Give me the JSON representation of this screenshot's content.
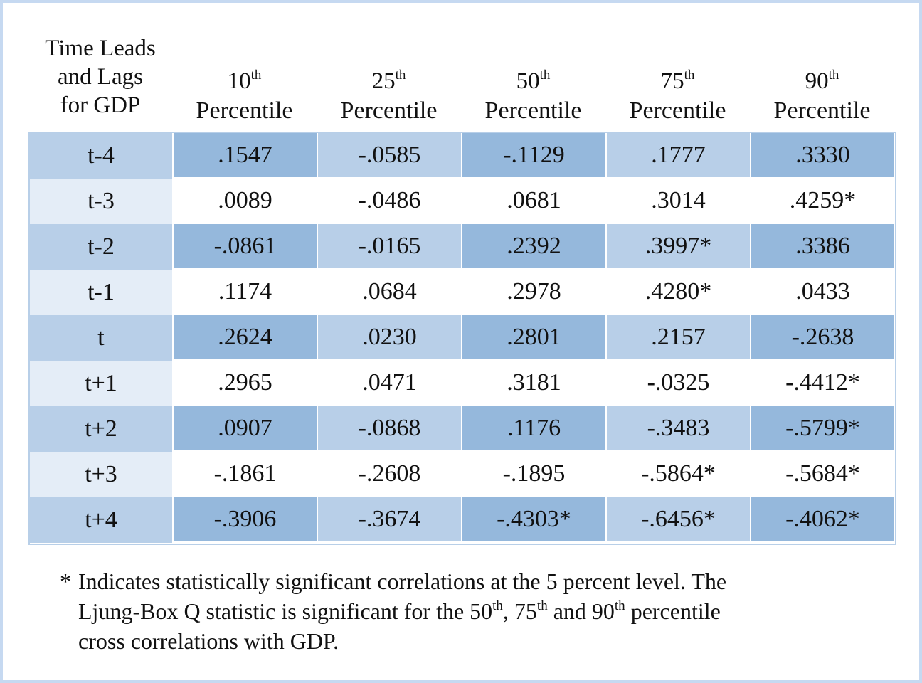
{
  "header": {
    "row_label": [
      "Time Leads",
      "and Lags",
      "for GDP"
    ],
    "columns": [
      {
        "number": "10",
        "sup": "th",
        "label": "Percentile"
      },
      {
        "number": "25",
        "sup": "th",
        "label": "Percentile"
      },
      {
        "number": "50",
        "sup": "th",
        "label": "Percentile"
      },
      {
        "number": "75",
        "sup": "th",
        "label": "Percentile"
      },
      {
        "number": "90",
        "sup": "th",
        "label": "Percentile"
      }
    ]
  },
  "table": {
    "rows": [
      {
        "label": "t-4",
        "cells": [
          ".1547",
          "-.0585",
          "-.1129",
          ".1777",
          ".3330"
        ]
      },
      {
        "label": "t-3",
        "cells": [
          ".0089",
          "-.0486",
          ".0681",
          ".3014",
          ".4259*"
        ]
      },
      {
        "label": "t-2",
        "cells": [
          "-.0861",
          "-.0165",
          ".2392",
          ".3997*",
          ".3386"
        ]
      },
      {
        "label": "t-1",
        "cells": [
          ".1174",
          ".0684",
          ".2978",
          ".4280*",
          ".0433"
        ]
      },
      {
        "label": "t",
        "cells": [
          ".2624",
          ".0230",
          ".2801",
          ".2157",
          "-.2638"
        ]
      },
      {
        "label": "t+1",
        "cells": [
          ".2965",
          ".0471",
          ".3181",
          "-.0325",
          "-.4412*"
        ]
      },
      {
        "label": "t+2",
        "cells": [
          ".0907",
          "-.0868",
          ".1176",
          "-.3483",
          "-.5799*"
        ]
      },
      {
        "label": "t+3",
        "cells": [
          "-.1861",
          "-.2608",
          "-.1895",
          "-.5864*",
          "-.5684*"
        ]
      },
      {
        "label": "t+4",
        "cells": [
          "-.3906",
          "-.3674",
          "-.4303*",
          "-.6456*",
          "-.4062*"
        ]
      }
    ]
  },
  "footnote": {
    "marker": "*",
    "lines": [
      [
        {
          "text": "Indicates statistically significant correlations at the 5 percent level. The",
          "sup": false
        }
      ],
      [
        {
          "text": "Ljung-Box Q statistic is significant for the 50",
          "sup": false
        },
        {
          "text": "th",
          "sup": true
        },
        {
          "text": ", 75",
          "sup": false
        },
        {
          "text": "th",
          "sup": true
        },
        {
          "text": " and 90",
          "sup": false
        },
        {
          "text": "th",
          "sup": true
        },
        {
          "text": " percentile",
          "sup": false
        }
      ],
      [
        {
          "text": "cross correlations with GDP.",
          "sup": false
        }
      ]
    ]
  }
}
